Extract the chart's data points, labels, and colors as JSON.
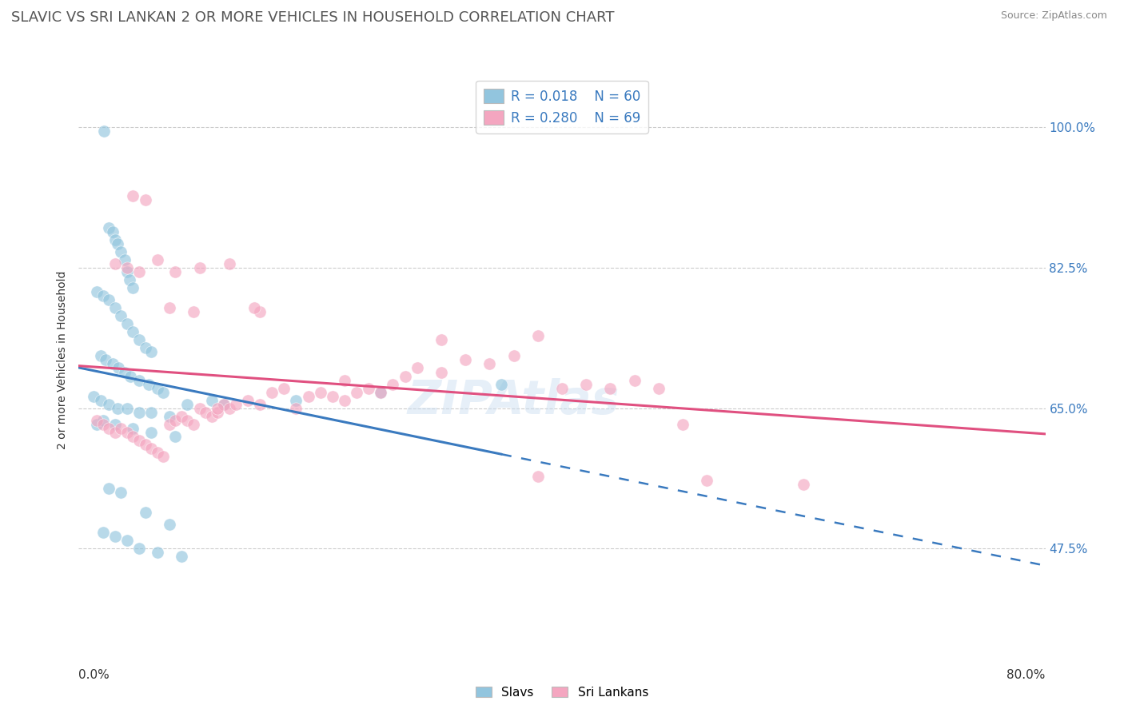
{
  "title": "SLAVIC VS SRI LANKAN 2 OR MORE VEHICLES IN HOUSEHOLD CORRELATION CHART",
  "source": "Source: ZipAtlas.com",
  "ylabel": "2 or more Vehicles in Household",
  "yticks": [
    47.5,
    65.0,
    82.5,
    100.0
  ],
  "ytick_labels": [
    "47.5%",
    "65.0%",
    "82.5%",
    "100.0%"
  ],
  "xmin": 0.0,
  "xmax": 80.0,
  "ymin": 35.0,
  "ymax": 107.0,
  "legend_r_slavs": "R = 0.018",
  "legend_n_slavs": "N = 60",
  "legend_r_srilankans": "R = 0.280",
  "legend_n_srilankans": "N = 69",
  "legend_label_slavs": "Slavs",
  "legend_label_srilankans": "Sri Lankans",
  "slavs_color": "#92c5de",
  "srilankans_color": "#f4a6c0",
  "slavs_line_color": "#3a7abf",
  "srilankans_line_color": "#e05080",
  "watermark": "ZIPAtlas",
  "title_fontsize": 13,
  "axis_label_fontsize": 10,
  "tick_fontsize": 11,
  "slavs_x": [
    2.1,
    2.5,
    2.8,
    3.0,
    3.2,
    3.5,
    3.8,
    4.0,
    4.2,
    4.5,
    1.5,
    2.0,
    2.5,
    3.0,
    3.5,
    4.0,
    4.5,
    5.0,
    5.5,
    6.0,
    1.8,
    2.2,
    2.8,
    3.3,
    3.8,
    4.3,
    5.0,
    5.8,
    6.5,
    7.0,
    1.2,
    1.8,
    2.5,
    3.2,
    4.0,
    5.0,
    6.0,
    7.5,
    9.0,
    11.0,
    1.5,
    2.0,
    3.0,
    4.5,
    6.0,
    8.0,
    2.5,
    3.5,
    5.5,
    7.5,
    2.0,
    3.0,
    4.0,
    5.0,
    6.5,
    8.5,
    12.0,
    18.0,
    25.0,
    35.0
  ],
  "slavs_y": [
    99.5,
    87.5,
    87.0,
    86.0,
    85.5,
    84.5,
    83.5,
    82.0,
    81.0,
    80.0,
    79.5,
    79.0,
    78.5,
    77.5,
    76.5,
    75.5,
    74.5,
    73.5,
    72.5,
    72.0,
    71.5,
    71.0,
    70.5,
    70.0,
    69.5,
    69.0,
    68.5,
    68.0,
    67.5,
    67.0,
    66.5,
    66.0,
    65.5,
    65.0,
    65.0,
    64.5,
    64.5,
    64.0,
    65.5,
    66.0,
    63.0,
    63.5,
    63.0,
    62.5,
    62.0,
    61.5,
    55.0,
    54.5,
    52.0,
    50.5,
    49.5,
    49.0,
    48.5,
    47.5,
    47.0,
    46.5,
    65.5,
    66.0,
    67.0,
    68.0
  ],
  "srilankans_x": [
    1.5,
    2.0,
    2.5,
    3.0,
    3.5,
    4.0,
    4.5,
    5.0,
    5.5,
    6.0,
    6.5,
    7.0,
    7.5,
    8.0,
    8.5,
    9.0,
    9.5,
    10.0,
    10.5,
    11.0,
    11.5,
    12.0,
    12.5,
    13.0,
    14.0,
    15.0,
    16.0,
    17.0,
    18.0,
    19.0,
    20.0,
    21.0,
    22.0,
    23.0,
    24.0,
    25.0,
    26.0,
    27.0,
    28.0,
    30.0,
    32.0,
    34.0,
    36.0,
    38.0,
    40.0,
    42.0,
    44.0,
    46.0,
    48.0,
    50.0,
    3.0,
    4.0,
    5.0,
    6.5,
    8.0,
    10.0,
    12.5,
    15.0,
    38.0,
    52.0,
    4.5,
    5.5,
    7.5,
    9.5,
    11.5,
    14.5,
    22.0,
    30.0,
    60.0
  ],
  "srilankans_y": [
    63.5,
    63.0,
    62.5,
    62.0,
    62.5,
    62.0,
    61.5,
    61.0,
    60.5,
    60.0,
    59.5,
    59.0,
    63.0,
    63.5,
    64.0,
    63.5,
    63.0,
    65.0,
    64.5,
    64.0,
    64.5,
    65.5,
    65.0,
    65.5,
    66.0,
    65.5,
    67.0,
    67.5,
    65.0,
    66.5,
    67.0,
    66.5,
    66.0,
    67.0,
    67.5,
    67.0,
    68.0,
    69.0,
    70.0,
    69.5,
    71.0,
    70.5,
    71.5,
    74.0,
    67.5,
    68.0,
    67.5,
    68.5,
    67.5,
    63.0,
    83.0,
    82.5,
    82.0,
    83.5,
    82.0,
    82.5,
    83.0,
    77.0,
    56.5,
    56.0,
    91.5,
    91.0,
    77.5,
    77.0,
    65.0,
    77.5,
    68.5,
    73.5,
    55.5
  ]
}
